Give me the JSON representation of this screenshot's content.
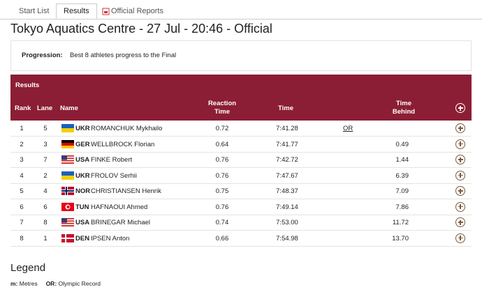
{
  "tabs": [
    "Start List",
    "Results",
    "Official Reports"
  ],
  "header": {
    "title": "Tokyo Aquatics Centre - 27 Jul - 20:46 - Official"
  },
  "progression": {
    "label": "Progression:",
    "text": "Best 8 athletes progress to the Final"
  },
  "table": {
    "title": "Results",
    "columns": {
      "rank": "Rank",
      "lane": "Lane",
      "name": "Name",
      "reaction": "Reaction Time",
      "time": "Time",
      "behind": "Time Behind"
    },
    "rows": [
      {
        "rank": "1",
        "lane": "5",
        "noc": "UKR",
        "name": "ROMANCHUK Mykhailo",
        "reaction": "0.72",
        "time": "7:41.28",
        "record": "OR"
      },
      {
        "rank": "2",
        "lane": "3",
        "noc": "GER",
        "name": "WELLBROCK Florian",
        "reaction": "0.64",
        "time": "7:41.77",
        "behind": "0.49"
      },
      {
        "rank": "3",
        "lane": "7",
        "noc": "USA",
        "name": "FINKE Robert",
        "reaction": "0.76",
        "time": "7:42.72",
        "behind": "1.44"
      },
      {
        "rank": "4",
        "lane": "2",
        "noc": "UKR",
        "name": "FROLOV Serhii",
        "reaction": "0.76",
        "time": "7:47.67",
        "behind": "6.39"
      },
      {
        "rank": "5",
        "lane": "4",
        "noc": "NOR",
        "name": "CHRISTIANSEN Henrik",
        "reaction": "0.75",
        "time": "7:48.37",
        "behind": "7.09"
      },
      {
        "rank": "6",
        "lane": "6",
        "noc": "TUN",
        "name": "HAFNAOUI Ahmed",
        "reaction": "0.76",
        "time": "7:49.14",
        "behind": "7.86"
      },
      {
        "rank": "7",
        "lane": "8",
        "noc": "USA",
        "name": "BRINEGAR Michael",
        "reaction": "0.74",
        "time": "7:53.00",
        "behind": "11.72"
      },
      {
        "rank": "8",
        "lane": "1",
        "noc": "DEN",
        "name": "IPSEN Anton",
        "reaction": "0.66",
        "time": "7:54.98",
        "behind": "13.70"
      }
    ]
  },
  "legend": {
    "title": "Legend",
    "items": [
      {
        "key": "m:",
        "text": "Metres"
      },
      {
        "key": "OR:",
        "text": "Olympic Record"
      }
    ]
  }
}
